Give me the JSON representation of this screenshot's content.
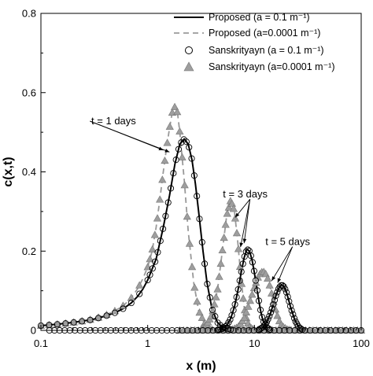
{
  "chart_data": {
    "type": "line",
    "title": "",
    "xlabel": "x (m)",
    "ylabel": "c(x,t)",
    "xscale": "log",
    "xlim": [
      0.1,
      100
    ],
    "ylim": [
      0,
      0.8
    ],
    "grid": false,
    "legend_position": "top-right",
    "x_tick_labels": [
      {
        "value": 0.1,
        "label": "0.1"
      },
      {
        "value": 1,
        "label": "1"
      },
      {
        "value": 10,
        "label": "10"
      },
      {
        "value": 100,
        "label": "100"
      }
    ],
    "y_tick_labels": [
      {
        "value": 0,
        "label": "0"
      },
      {
        "value": 0.2,
        "label": "0.2"
      },
      {
        "value": 0.4,
        "label": "0.4"
      },
      {
        "value": 0.6,
        "label": "0.6"
      },
      {
        "value": 0.8,
        "label": "0.8"
      }
    ],
    "series": [
      {
        "name": "Proposed (a = 0.1 m⁻¹)",
        "style": "solid-line",
        "color": "#000000",
        "curves": [
          {
            "label": "t = 1 days",
            "x": [
              0.1,
              0.15,
              0.2,
              0.3,
              0.4,
              0.5,
              0.6,
              0.7,
              0.8,
              0.9,
              1.0,
              1.2,
              1.4,
              1.6,
              1.8,
              2.0,
              2.2,
              2.4,
              2.6,
              2.8,
              3.0,
              3.3,
              3.6,
              4.0,
              4.5,
              5.0,
              6.0,
              7.0
            ],
            "y": [
              0.012,
              0.016,
              0.02,
              0.027,
              0.036,
              0.045,
              0.056,
              0.069,
              0.085,
              0.104,
              0.127,
              0.18,
              0.26,
              0.34,
              0.42,
              0.47,
              0.483,
              0.47,
              0.43,
              0.37,
              0.3,
              0.2,
              0.12,
              0.055,
              0.02,
              0.008,
              0.002,
              0
            ]
          },
          {
            "label": "t = 3 days",
            "x": [
              4.5,
              5.0,
              5.5,
              6.0,
              6.5,
              7.0,
              7.5,
              8.0,
              8.5,
              9.0,
              9.5,
              10.0,
              10.5,
              11.0,
              11.5,
              12.0,
              13.0,
              14.0
            ],
            "y": [
              0.001,
              0.004,
              0.012,
              0.03,
              0.06,
              0.1,
              0.145,
              0.183,
              0.205,
              0.2,
              0.178,
              0.145,
              0.11,
              0.075,
              0.045,
              0.025,
              0.008,
              0.002
            ]
          },
          {
            "label": "t = 5 days",
            "x": [
              11,
              12,
              13,
              14,
              15,
              16,
              17,
              18,
              19,
              20,
              21,
              22,
              24,
              26,
              28
            ],
            "y": [
              0.002,
              0.008,
              0.02,
              0.04,
              0.065,
              0.09,
              0.108,
              0.115,
              0.11,
              0.095,
              0.075,
              0.055,
              0.025,
              0.008,
              0.002
            ]
          }
        ]
      },
      {
        "name": "Proposed (a=0.0001 m⁻¹)",
        "style": "dashed-line",
        "color": "#999999",
        "curves": [
          {
            "label": "t = 1 days",
            "x": [
              0.1,
              0.15,
              0.2,
              0.3,
              0.4,
              0.5,
              0.6,
              0.7,
              0.8,
              0.9,
              1.0,
              1.1,
              1.2,
              1.3,
              1.4,
              1.5,
              1.6,
              1.7,
              1.8,
              1.9,
              2.0,
              2.2,
              2.4,
              2.7,
              3.0,
              3.5,
              4.0
            ],
            "y": [
              0.012,
              0.016,
              0.02,
              0.028,
              0.038,
              0.05,
              0.064,
              0.082,
              0.104,
              0.13,
              0.16,
              0.2,
              0.26,
              0.33,
              0.4,
              0.46,
              0.51,
              0.55,
              0.565,
              0.55,
              0.5,
              0.38,
              0.25,
              0.12,
              0.05,
              0.01,
              0.002
            ]
          },
          {
            "label": "t = 3 days",
            "x": [
              3.0,
              3.5,
              4.0,
              4.5,
              5.0,
              5.5,
              6.0,
              6.5,
              7.0,
              7.5,
              8.0,
              8.5,
              9.0,
              10.0
            ],
            "y": [
              0.001,
              0.01,
              0.04,
              0.1,
              0.2,
              0.29,
              0.33,
              0.3,
              0.22,
              0.13,
              0.06,
              0.025,
              0.008,
              0.001
            ]
          },
          {
            "label": "t = 5 days",
            "x": [
              6,
              7,
              8,
              9,
              10,
              11,
              12,
              13,
              14,
              15,
              16,
              17,
              18,
              20,
              22
            ],
            "y": [
              0.001,
              0.008,
              0.03,
              0.07,
              0.11,
              0.14,
              0.15,
              0.14,
              0.11,
              0.075,
              0.045,
              0.025,
              0.012,
              0.003,
              0.001
            ]
          }
        ]
      },
      {
        "name": "Sanskrityayn (a = 0.1 m⁻¹)",
        "style": "open-circle-marker",
        "color": "#000000"
      },
      {
        "name": "Sanskrityayn (a=0.0001 m⁻¹)",
        "style": "filled-triangle-marker",
        "color": "#999999"
      }
    ],
    "annotations": [
      {
        "text": "t = 1 days",
        "label_at": [
          0.48,
          0.52
        ],
        "arrows_to": [
          [
            1.4,
            0.455
          ],
          [
            1.6,
            0.45
          ]
        ]
      },
      {
        "text": "t = 3 days",
        "label_at": [
          8.2,
          0.335
        ],
        "arrows_to": [
          [
            6.6,
            0.285
          ],
          [
            8.0,
            0.22
          ],
          [
            7.4,
            0.21
          ]
        ]
      },
      {
        "text": "t = 5 days",
        "label_at": [
          20.5,
          0.215
        ],
        "arrows_to": [
          [
            14.5,
            0.125
          ],
          [
            16.5,
            0.12
          ]
        ]
      }
    ]
  }
}
